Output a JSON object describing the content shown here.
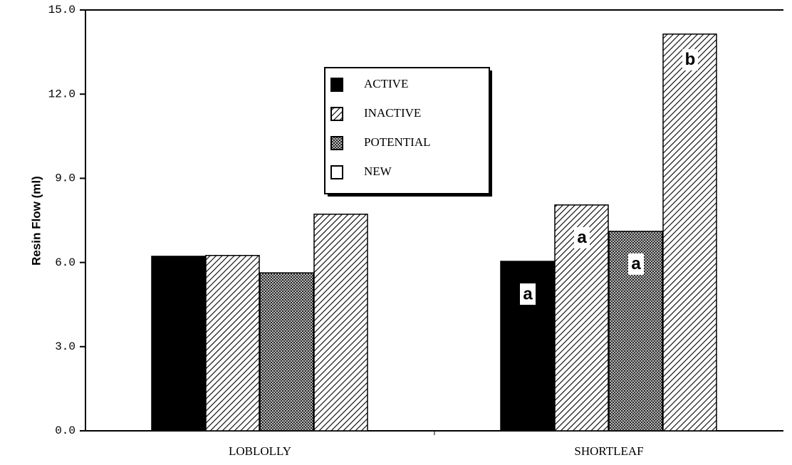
{
  "chart_data": {
    "type": "bar",
    "y_label": "Resin Flow (ml)",
    "categories": [
      "LOBLOLLY",
      "SHORTLEAF"
    ],
    "series": [
      {
        "name": "ACTIVE",
        "color": "#000000",
        "pattern": "solid",
        "values": [
          6.22,
          6.04
        ],
        "labels": [
          null,
          "a"
        ]
      },
      {
        "name": "INACTIVE",
        "color": "#000000",
        "pattern": "hatch",
        "values": [
          6.25,
          8.05
        ],
        "labels": [
          null,
          "a"
        ]
      },
      {
        "name": "POTENTIAL",
        "color": "#000000",
        "pattern": "dots",
        "values": [
          5.63,
          7.11
        ],
        "labels": [
          null,
          "a"
        ]
      },
      {
        "name": "NEW",
        "color": "#000000",
        "pattern": "hatch",
        "legend_pattern": "empty",
        "values": [
          7.72,
          14.14
        ],
        "labels": [
          null,
          "b"
        ]
      }
    ],
    "ylim": [
      0,
      15
    ],
    "yticks": [
      {
        "value": 0,
        "label": "0.0"
      },
      {
        "value": 3,
        "label": "3.0"
      },
      {
        "value": 6,
        "label": "6.0"
      },
      {
        "value": 9,
        "label": "9.0"
      },
      {
        "value": 12,
        "label": "12.0"
      },
      {
        "value": 15,
        "label": "15.0"
      }
    ],
    "legend": "upper center"
  }
}
